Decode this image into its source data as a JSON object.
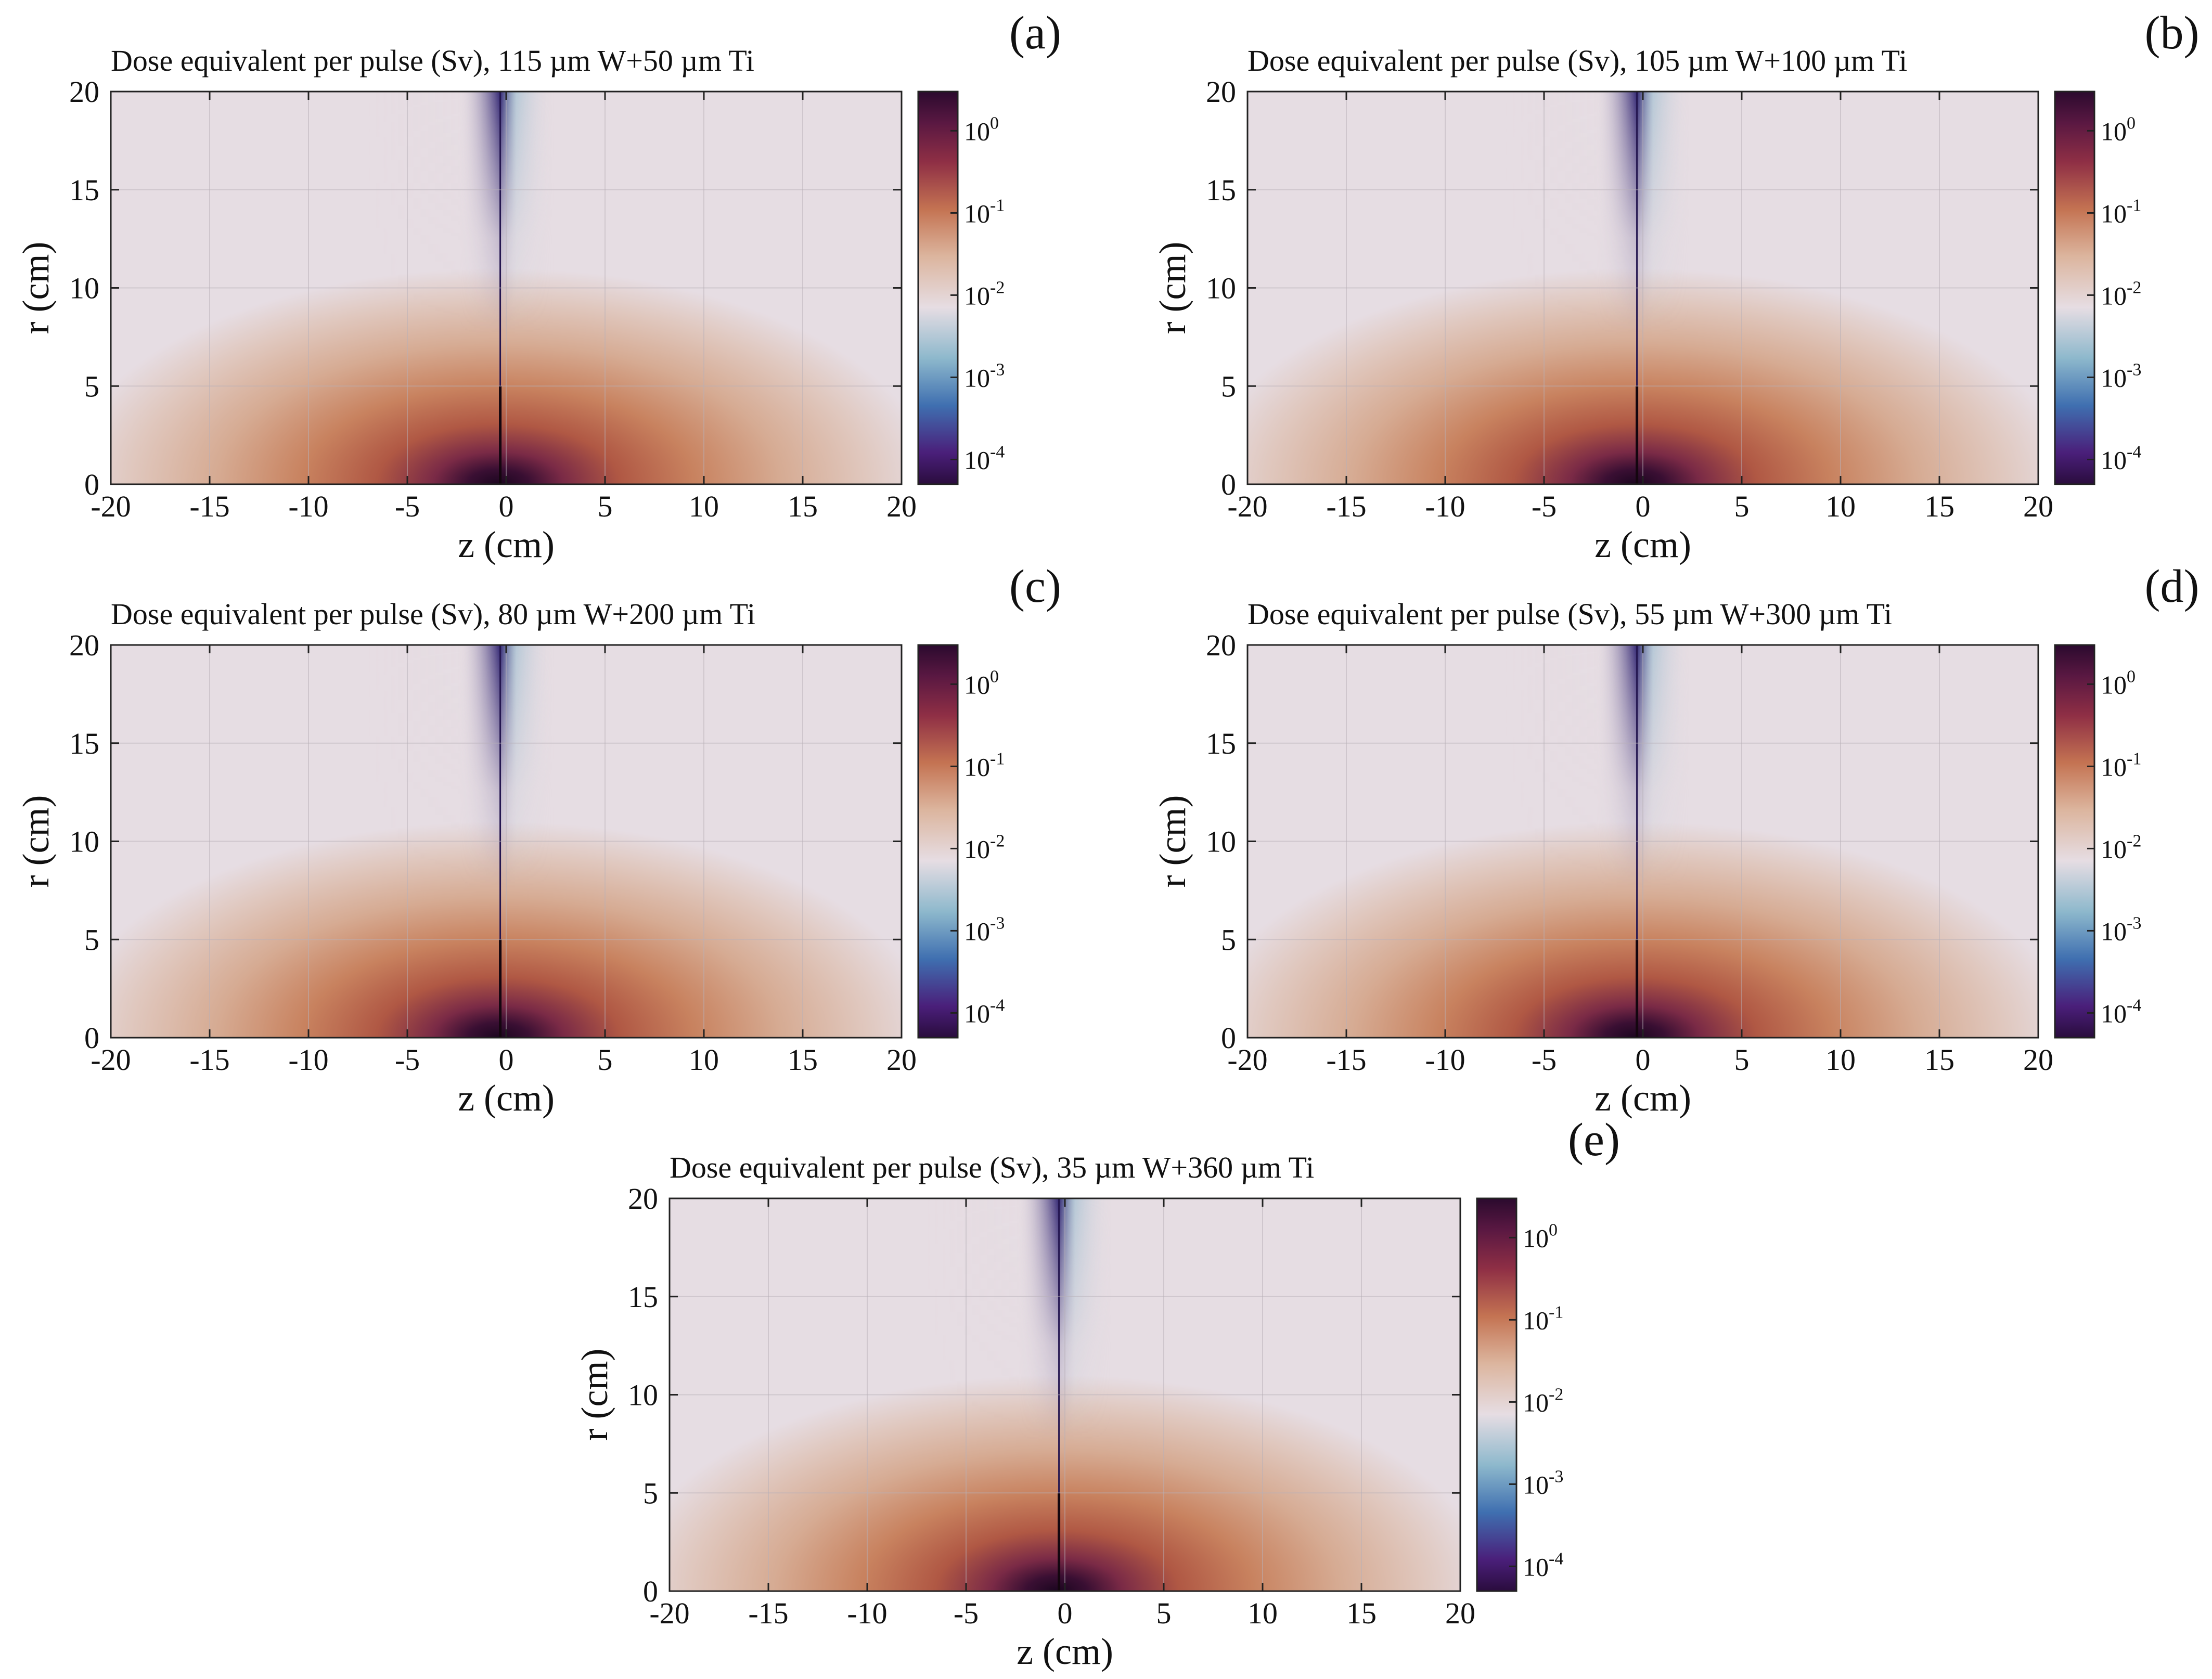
{
  "figure": {
    "description_title": "Dose equivalent maps"
  },
  "colorbar": {
    "scale": "log",
    "range": [
      5e-05,
      3.0
    ],
    "ticks": [
      {
        "base": "10",
        "exp": "0",
        "value": 1
      },
      {
        "base": "10",
        "exp": "-1",
        "value": 0.1
      },
      {
        "base": "10",
        "exp": "-2",
        "value": 0.01
      },
      {
        "base": "10",
        "exp": "-3",
        "value": 0.001
      },
      {
        "base": "10",
        "exp": "-4",
        "value": 0.0001
      }
    ],
    "colors": {
      "max": "#2b0a2e",
      "high": "#7a1f44",
      "mid_high": "#b45a44",
      "mid": "#d9a58a",
      "low": "#e6dde3",
      "lower": "#a8c8d2",
      "lowest_a": "#3f6fb0",
      "lowest_b": "#5a2a8f",
      "min": "#2a0c3d"
    }
  },
  "chart_data": [
    {
      "type": "heatmap",
      "panel": "(a)",
      "title": "Dose equivalent per pulse (Sv), 115 µm W+50 µm Ti",
      "xlabel": "z (cm)",
      "ylabel": "r (cm)",
      "xlim": [
        -20,
        20
      ],
      "ylim": [
        0,
        20
      ],
      "xticks": [
        -20,
        -15,
        -10,
        -5,
        0,
        5,
        10,
        15,
        20
      ],
      "yticks": [
        0,
        5,
        10,
        15,
        20
      ],
      "xtick_labels": [
        "-20",
        "-15",
        "-10",
        "-5",
        "0",
        "5",
        "10",
        "15",
        "20"
      ],
      "ytick_labels": [
        "0",
        "5",
        "10",
        "15",
        "20"
      ],
      "source_z_cm": -0.3,
      "colorbar_label": "Sv"
    },
    {
      "type": "heatmap",
      "panel": "(b)",
      "title": "Dose equivalent per pulse (Sv), 105 µm W+100 µm Ti",
      "xlabel": "z (cm)",
      "ylabel": "r (cm)",
      "xlim": [
        -20,
        20
      ],
      "ylim": [
        0,
        20
      ],
      "xticks": [
        -20,
        -15,
        -10,
        -5,
        0,
        5,
        10,
        15,
        20
      ],
      "yticks": [
        0,
        5,
        10,
        15,
        20
      ],
      "xtick_labels": [
        "-20",
        "-15",
        "-10",
        "-5",
        "0",
        "5",
        "10",
        "15",
        "20"
      ],
      "ytick_labels": [
        "0",
        "5",
        "10",
        "15",
        "20"
      ],
      "source_z_cm": -0.3,
      "colorbar_label": "Sv"
    },
    {
      "type": "heatmap",
      "panel": "(c)",
      "title": "Dose equivalent per pulse (Sv), 80 µm W+200 µm Ti",
      "xlabel": "z (cm)",
      "ylabel": "r (cm)",
      "xlim": [
        -20,
        20
      ],
      "ylim": [
        0,
        20
      ],
      "xticks": [
        -20,
        -15,
        -10,
        -5,
        0,
        5,
        10,
        15,
        20
      ],
      "yticks": [
        0,
        5,
        10,
        15,
        20
      ],
      "xtick_labels": [
        "-20",
        "-15",
        "-10",
        "-5",
        "0",
        "5",
        "10",
        "15",
        "20"
      ],
      "ytick_labels": [
        "0",
        "5",
        "10",
        "15",
        "20"
      ],
      "source_z_cm": -0.3,
      "colorbar_label": "Sv"
    },
    {
      "type": "heatmap",
      "panel": "(d)",
      "title": "Dose equivalent per pulse (Sv), 55 µm W+300 µm Ti",
      "xlabel": "z (cm)",
      "ylabel": "r (cm)",
      "xlim": [
        -20,
        20
      ],
      "ylim": [
        0,
        20
      ],
      "xticks": [
        -20,
        -15,
        -10,
        -5,
        0,
        5,
        10,
        15,
        20
      ],
      "yticks": [
        0,
        5,
        10,
        15,
        20
      ],
      "xtick_labels": [
        "-20",
        "-15",
        "-10",
        "-5",
        "0",
        "5",
        "10",
        "15",
        "20"
      ],
      "ytick_labels": [
        "0",
        "5",
        "10",
        "15",
        "20"
      ],
      "source_z_cm": -0.3,
      "colorbar_label": "Sv"
    },
    {
      "type": "heatmap",
      "panel": "(e)",
      "title": "Dose equivalent per pulse (Sv), 35 µm W+360 µm Ti",
      "xlabel": "z (cm)",
      "ylabel": "r (cm)",
      "xlim": [
        -20,
        20
      ],
      "ylim": [
        0,
        20
      ],
      "xticks": [
        -20,
        -15,
        -10,
        -5,
        0,
        5,
        10,
        15,
        20
      ],
      "yticks": [
        0,
        5,
        10,
        15,
        20
      ],
      "xtick_labels": [
        "-20",
        "-15",
        "-10",
        "-5",
        "0",
        "5",
        "10",
        "15",
        "20"
      ],
      "ytick_labels": [
        "0",
        "5",
        "10",
        "15",
        "20"
      ],
      "source_z_cm": -0.3,
      "colorbar_label": "Sv"
    }
  ]
}
